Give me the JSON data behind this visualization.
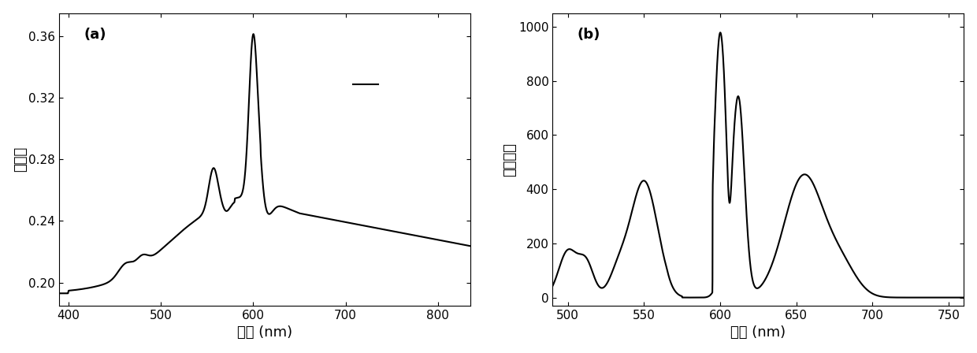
{
  "panel_a": {
    "label": "(a)",
    "xlabel": "波长 (nm)",
    "ylabel": "吸光度",
    "xlim": [
      390,
      835
    ],
    "ylim": [
      0.185,
      0.375
    ],
    "xticks": [
      400,
      500,
      600,
      700,
      800
    ],
    "yticks": [
      0.2,
      0.24,
      0.28,
      0.32,
      0.36
    ]
  },
  "panel_b": {
    "label": "(b)",
    "xlabel": "波长 (nm)",
    "ylabel": "荧光强度",
    "xlim": [
      490,
      760
    ],
    "ylim": [
      -30,
      1050
    ],
    "xticks": [
      500,
      550,
      600,
      650,
      700,
      750
    ],
    "yticks": [
      0,
      200,
      400,
      600,
      800,
      1000
    ]
  },
  "line_color": "#000000",
  "line_width": 1.5,
  "font_size_label": 13,
  "font_size_tick": 11,
  "font_size_annot": 13
}
